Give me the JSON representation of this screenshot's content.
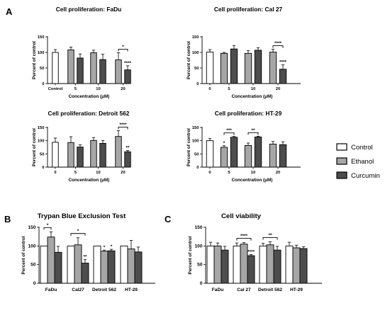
{
  "panel_letters": [
    "A",
    "B",
    "C"
  ],
  "legend": {
    "entries": [
      {
        "label": "Control",
        "color": "#ffffff"
      },
      {
        "label": "Ethanol",
        "color": "#a6a6a6"
      },
      {
        "label": "Curcumin",
        "color": "#4d4d4d"
      }
    ]
  },
  "chart_data": [
    {
      "type": "bar",
      "title": "Cell proliferation: FaDu",
      "xlabel": "Concentration (μM)",
      "ylabel": "Percent of control",
      "ylim": [
        0,
        150
      ],
      "yticks": [
        0,
        50,
        100,
        150
      ],
      "categories": [
        "Control",
        "5",
        "10",
        "20"
      ],
      "bars": [
        {
          "group": "Control",
          "series": "Control",
          "value": 100,
          "error": 9
        },
        {
          "group": "5",
          "series": "Ethanol",
          "value": 108,
          "error": 9
        },
        {
          "group": "5",
          "series": "Curcumin",
          "value": 82,
          "error": 13
        },
        {
          "group": "10",
          "series": "Ethanol",
          "value": 99,
          "error": 8
        },
        {
          "group": "10",
          "series": "Curcumin",
          "value": 77,
          "error": 17
        },
        {
          "group": "20",
          "series": "Ethanol",
          "value": 76,
          "error": 23
        },
        {
          "group": "20",
          "series": "Curcumin",
          "value": 44,
          "error": 13
        }
      ],
      "annotations": [
        {
          "type": "bracket",
          "label": "*",
          "group": "20"
        },
        {
          "type": "mark",
          "label": "****",
          "group": "20",
          "series": "Curcumin"
        }
      ]
    },
    {
      "type": "bar",
      "title": "Cell proliferation: Cal 27",
      "xlabel": "Concentration (μM)",
      "ylabel": "Percent of control",
      "ylim": [
        0,
        150
      ],
      "yticks": [
        0,
        50,
        100,
        150
      ],
      "categories": [
        "0",
        "5",
        "10",
        "20"
      ],
      "bars": [
        {
          "group": "0",
          "series": "Control",
          "value": 101,
          "error": 8
        },
        {
          "group": "5",
          "series": "Ethanol",
          "value": 97,
          "error": 3
        },
        {
          "group": "5",
          "series": "Curcumin",
          "value": 111,
          "error": 11
        },
        {
          "group": "10",
          "series": "Ethanol",
          "value": 97,
          "error": 9
        },
        {
          "group": "10",
          "series": "Curcumin",
          "value": 107,
          "error": 8
        },
        {
          "group": "20",
          "series": "Ethanol",
          "value": 101,
          "error": 9
        },
        {
          "group": "20",
          "series": "Curcumin",
          "value": 46,
          "error": 14
        }
      ],
      "annotations": [
        {
          "type": "bracket",
          "label": "****",
          "group": "20"
        },
        {
          "type": "mark",
          "label": "****",
          "group": "20",
          "series": "Curcumin"
        }
      ]
    },
    {
      "type": "bar",
      "title": "Cell proliferation: Detroit 562",
      "xlabel": "Concentration (μM)",
      "ylabel": "Percent of control",
      "ylim": [
        0,
        150
      ],
      "yticks": [
        0,
        50,
        100,
        150
      ],
      "categories": [
        "0",
        "5",
        "10",
        "20"
      ],
      "bars": [
        {
          "group": "0",
          "series": "Control",
          "value": 94,
          "error": 16
        },
        {
          "group": "5",
          "series": "Ethanol",
          "value": 93,
          "error": 22
        },
        {
          "group": "5",
          "series": "Curcumin",
          "value": 76,
          "error": 9
        },
        {
          "group": "10",
          "series": "Ethanol",
          "value": 101,
          "error": 11
        },
        {
          "group": "10",
          "series": "Curcumin",
          "value": 90,
          "error": 11
        },
        {
          "group": "20",
          "series": "Ethanol",
          "value": 116,
          "error": 22
        },
        {
          "group": "20",
          "series": "Curcumin",
          "value": 58,
          "error": 5
        }
      ],
      "annotations": [
        {
          "type": "bracket",
          "label": "****",
          "group": "20"
        },
        {
          "type": "mark",
          "label": "**",
          "group": "20",
          "series": "Curcumin"
        }
      ]
    },
    {
      "type": "bar",
      "title": "Cell proliferation: HT-29",
      "xlabel": "Concentration (μM)",
      "ylabel": "Percent of control",
      "ylim": [
        0,
        150
      ],
      "yticks": [
        0,
        50,
        100,
        150
      ],
      "categories": [
        "0",
        "5",
        "10",
        "20"
      ],
      "bars": [
        {
          "group": "0",
          "series": "Control",
          "value": 100,
          "error": 8
        },
        {
          "group": "5",
          "series": "Ethanol",
          "value": 75,
          "error": 6
        },
        {
          "group": "5",
          "series": "Curcumin",
          "value": 113,
          "error": 3
        },
        {
          "group": "10",
          "series": "Ethanol",
          "value": 82,
          "error": 9
        },
        {
          "group": "10",
          "series": "Curcumin",
          "value": 114,
          "error": 3
        },
        {
          "group": "20",
          "series": "Ethanol",
          "value": 87,
          "error": 10
        },
        {
          "group": "20",
          "series": "Curcumin",
          "value": 85,
          "error": 11
        }
      ],
      "annotations": [
        {
          "type": "mark",
          "label": "*",
          "group": "5",
          "series": "Ethanol"
        },
        {
          "type": "bracket",
          "label": "***",
          "group": "5"
        },
        {
          "type": "bracket",
          "label": "**",
          "group": "10"
        }
      ]
    },
    {
      "type": "bar",
      "title": "Trypan Blue Exclusion Test",
      "xlabel": "",
      "ylabel": "Percent of control",
      "ylim": [
        0,
        150
      ],
      "yticks": [
        0,
        50,
        100,
        150
      ],
      "categories": [
        "FaDu",
        "Cal27",
        "Detroit 562",
        "HT-29"
      ],
      "bars": [
        {
          "group": "FaDu",
          "series": "Control",
          "value": 100,
          "error": 0
        },
        {
          "group": "FaDu",
          "series": "Ethanol",
          "value": 124,
          "error": 14
        },
        {
          "group": "FaDu",
          "series": "Curcumin",
          "value": 83,
          "error": 16
        },
        {
          "group": "Cal27",
          "series": "Control",
          "value": 100,
          "error": 0
        },
        {
          "group": "Cal27",
          "series": "Ethanol",
          "value": 103,
          "error": 19
        },
        {
          "group": "Cal27",
          "series": "Curcumin",
          "value": 54,
          "error": 10
        },
        {
          "group": "Detroit 562",
          "series": "Control",
          "value": 100,
          "error": 0
        },
        {
          "group": "Detroit 562",
          "series": "Ethanol",
          "value": 86,
          "error": 3
        },
        {
          "group": "Detroit 562",
          "series": "Curcumin",
          "value": 87,
          "error": 4
        },
        {
          "group": "HT-29",
          "series": "Control",
          "value": 100,
          "error": 0
        },
        {
          "group": "HT-29",
          "series": "Ethanol",
          "value": 92,
          "error": 23
        },
        {
          "group": "HT-29",
          "series": "Curcumin",
          "value": 84,
          "error": 13
        }
      ],
      "annotations": [
        {
          "type": "bracket",
          "label": "*",
          "group": "FaDu",
          "from": "Control",
          "to": "Ethanol"
        },
        {
          "type": "bracket",
          "label": "*",
          "group": "Cal27",
          "from": "Control",
          "to": "Curcumin"
        },
        {
          "type": "mark",
          "label": "**",
          "group": "Cal27",
          "series": "Curcumin"
        },
        {
          "type": "mark",
          "label": "*",
          "group": "Detroit 562",
          "series": "Ethanol"
        },
        {
          "type": "mark",
          "label": "*",
          "group": "Detroit 562",
          "series": "Curcumin"
        }
      ]
    },
    {
      "type": "bar",
      "title": "Cell viability",
      "xlabel": "",
      "ylabel": "Percent of control",
      "ylim": [
        0,
        150
      ],
      "yticks": [
        0,
        50,
        100,
        150
      ],
      "categories": [
        "FaDu",
        "Cal 27",
        "Detroit 562",
        "HT-29"
      ],
      "bars": [
        {
          "group": "FaDu",
          "series": "Control",
          "value": 100,
          "error": 10
        },
        {
          "group": "FaDu",
          "series": "Ethanol",
          "value": 100,
          "error": 8
        },
        {
          "group": "FaDu",
          "series": "Curcumin",
          "value": 89,
          "error": 10
        },
        {
          "group": "Cal 27",
          "series": "Control",
          "value": 100,
          "error": 8
        },
        {
          "group": "Cal 27",
          "series": "Ethanol",
          "value": 105,
          "error": 4
        },
        {
          "group": "Cal 27",
          "series": "Curcumin",
          "value": 74,
          "error": 3
        },
        {
          "group": "Detroit 562",
          "series": "Control",
          "value": 100,
          "error": 7
        },
        {
          "group": "Detroit 562",
          "series": "Ethanol",
          "value": 103,
          "error": 8
        },
        {
          "group": "Detroit 562",
          "series": "Curcumin",
          "value": 89,
          "error": 10
        },
        {
          "group": "HT-29",
          "series": "Control",
          "value": 100,
          "error": 10
        },
        {
          "group": "HT-29",
          "series": "Ethanol",
          "value": 95,
          "error": 7
        },
        {
          "group": "HT-29",
          "series": "Curcumin",
          "value": 93,
          "error": 5
        }
      ],
      "annotations": [
        {
          "type": "bracket",
          "label": "****",
          "group": "Cal 27",
          "from": "Control",
          "to": "Curcumin"
        },
        {
          "type": "mark",
          "label": "****",
          "group": "Cal 27",
          "series": "Curcumin"
        },
        {
          "type": "bracket",
          "label": "**",
          "group": "Detroit 562",
          "from": "Control",
          "to": "Curcumin"
        }
      ]
    }
  ]
}
